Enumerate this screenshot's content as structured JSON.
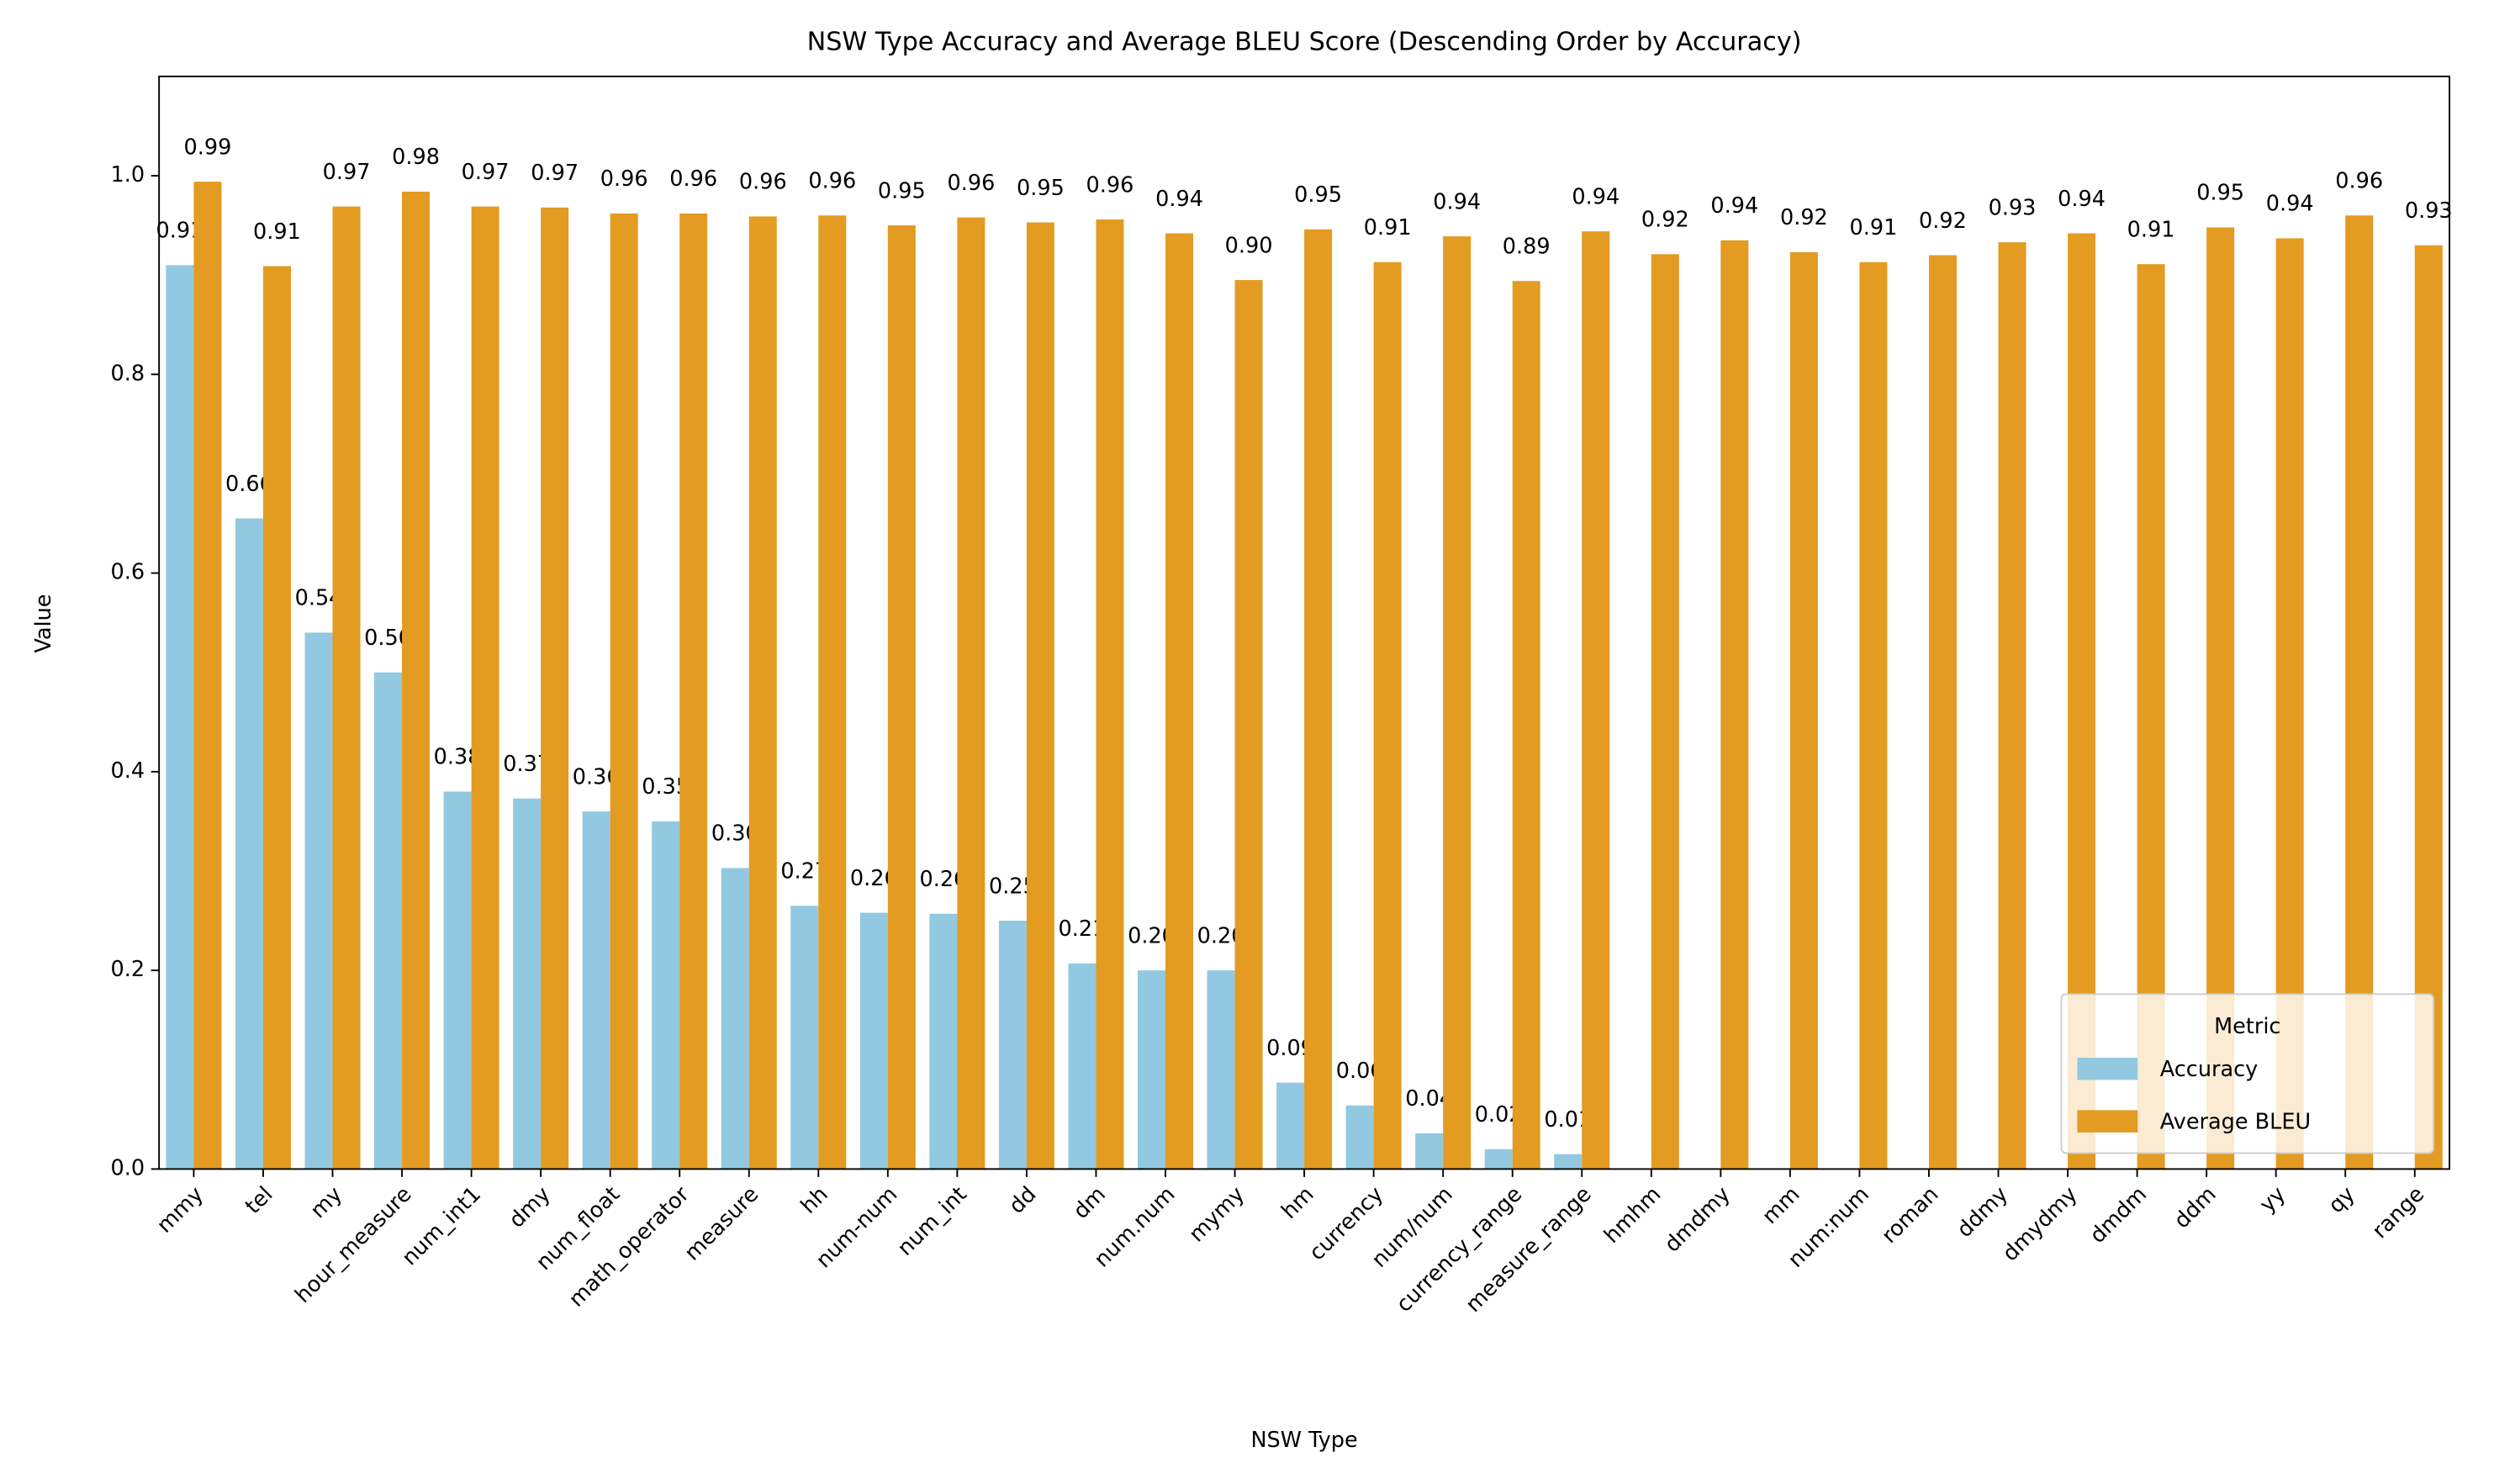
{
  "chart_data": {
    "type": "bar",
    "title": "NSW Type Accuracy and Average BLEU Score (Descending Order by Accuracy)",
    "x_label": "NSW Type",
    "y_label": "Value",
    "categories": [
      "mmy",
      "tel",
      "my",
      "hour_measure",
      "num_int1",
      "dmy",
      "num_float",
      "math_operator",
      "measure",
      "hh",
      "num-num",
      "num_int",
      "dd",
      "dm",
      "num.num",
      "mymy",
      "hm",
      "currency",
      "num/num",
      "currency_range",
      "measure_range",
      "hmhm",
      "dmdmy",
      "mm",
      "num:num",
      "roman",
      "ddmy",
      "dmydmy",
      "dmdm",
      "ddm",
      "yy",
      "qy",
      "range"
    ],
    "series": [
      {
        "name": "Accuracy",
        "color": "#92c9e0",
        "values": [
          0.91,
          0.655,
          0.54,
          0.5,
          0.38,
          0.373,
          0.36,
          0.35,
          0.303,
          0.265,
          0.258,
          0.257,
          0.25,
          0.207,
          0.2,
          0.2,
          0.087,
          0.064,
          0.036,
          0.02,
          0.015,
          0,
          0,
          0,
          0,
          0,
          0,
          0,
          0,
          0,
          0,
          0,
          0
        ],
        "value_labels": [
          "0.91",
          "0.66",
          "0.54",
          "0.50",
          "0.38",
          "0.37",
          "0.36",
          "0.35",
          "0.30",
          "0.27",
          "0.26",
          "0.26",
          "0.25",
          "0.21",
          "0.20",
          "0.20",
          "0.09",
          "0.06",
          "0.04",
          "0.02",
          "0.01",
          null,
          null,
          null,
          null,
          null,
          null,
          null,
          null,
          null,
          null,
          null,
          null
        ]
      },
      {
        "name": "Average BLEU",
        "color": "#e39b22",
        "values": [
          0.994,
          0.909,
          0.969,
          0.984,
          0.969,
          0.968,
          0.962,
          0.962,
          0.959,
          0.96,
          0.95,
          0.958,
          0.953,
          0.956,
          0.942,
          0.895,
          0.946,
          0.913,
          0.939,
          0.894,
          0.944,
          0.921,
          0.935,
          0.923,
          0.913,
          0.92,
          0.933,
          0.942,
          0.911,
          0.948,
          0.937,
          0.96,
          0.93
        ],
        "value_labels": [
          "0.99",
          "0.91",
          "0.97",
          "0.98",
          "0.97",
          "0.97",
          "0.96",
          "0.96",
          "0.96",
          "0.96",
          "0.95",
          "0.96",
          "0.95",
          "0.96",
          "0.94",
          "0.90",
          "0.95",
          "0.91",
          "0.94",
          "0.89",
          "0.94",
          "0.92",
          "0.94",
          "0.92",
          "0.91",
          "0.92",
          "0.93",
          "0.94",
          "0.91",
          "0.95",
          "0.94",
          "0.96",
          "0.93"
        ]
      }
    ],
    "ylim": [
      0,
      1.1
    ],
    "yticks": [
      {
        "value": 0,
        "label": "0.0"
      },
      0.2,
      0.4,
      0.6,
      0.8,
      {
        "value": 1,
        "label": "1.0"
      }
    ],
    "legend_title": "Metric",
    "legend": "lower right"
  }
}
